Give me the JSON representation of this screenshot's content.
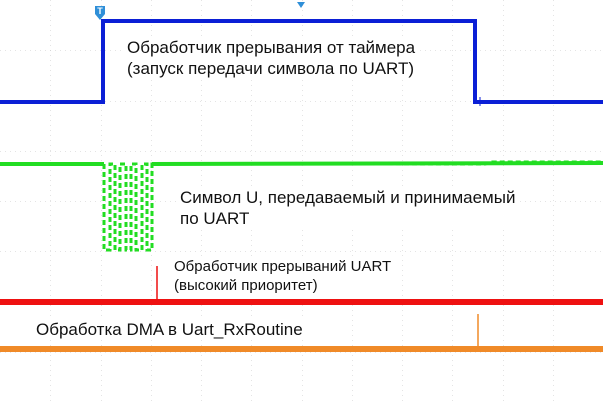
{
  "marker": {
    "trigger_glyph": "T",
    "trigger_icon": "trigger-marker-icon",
    "center_icon": "center-marker-icon"
  },
  "colors": {
    "background": "#ffffff",
    "grid": "#c8c8c8",
    "marker": "#2f8fd8",
    "ch1": "#0b1fd6",
    "ch2": "#22dd22",
    "ch3": "#ee1111",
    "ch4": "#f08a28"
  },
  "annotations": {
    "timer_isr": {
      "line1": "Обработчик прерывания от таймера",
      "line2": "(запуск передачи символа по UART)"
    },
    "uart_symbol": {
      "line1": "Символ U, передаваемый и принимаемый",
      "line2": "по UART"
    },
    "uart_isr": {
      "line1": "Обработчик прерываний UART",
      "line2": "(высокий приоритет)"
    },
    "dma": {
      "line1": "Обработка DMA в Uart_RxRoutine"
    }
  }
}
